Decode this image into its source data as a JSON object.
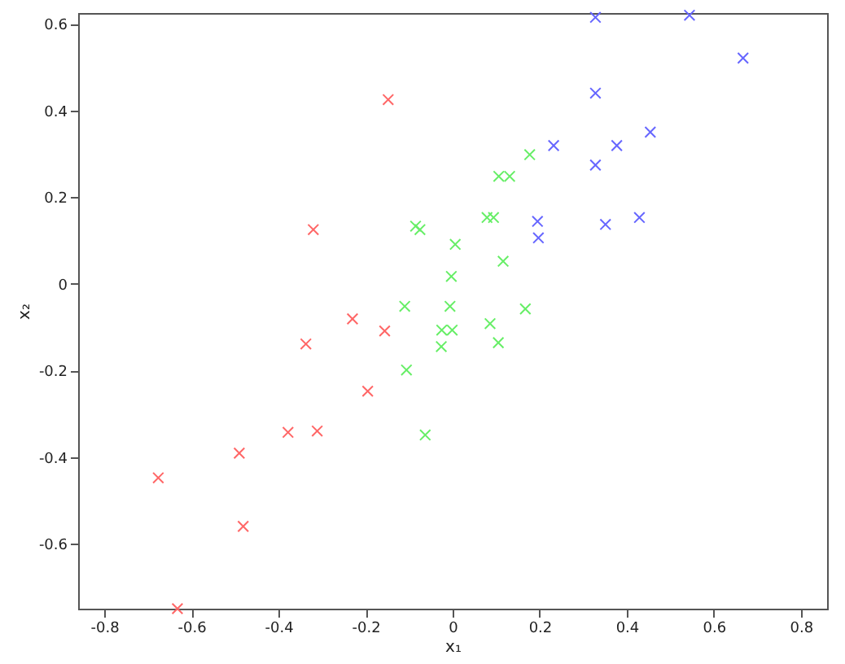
{
  "chart_data": {
    "type": "scatter",
    "xlabel": "x₁",
    "ylabel": "x₂",
    "xlim": [
      -0.86,
      0.86
    ],
    "ylim": [
      -0.75,
      0.625
    ],
    "xticks": [
      -0.8,
      -0.6,
      -0.4,
      -0.2,
      0,
      0.2,
      0.4,
      0.6,
      0.8
    ],
    "yticks": [
      -0.6,
      -0.4,
      -0.2,
      0,
      0.2,
      0.4,
      0.6
    ],
    "grid": false,
    "marker": "cross",
    "series": [
      {
        "color": "#ff6666",
        "x": [
          -0.148,
          -0.32,
          -0.23,
          -0.156,
          -0.337,
          -0.195,
          -0.378,
          -0.311,
          -0.49,
          -0.676,
          -0.481,
          -0.632
        ],
        "values": [
          0.425,
          0.125,
          -0.081,
          -0.109,
          -0.139,
          -0.248,
          -0.343,
          -0.34,
          -0.391,
          -0.448,
          -0.56,
          -0.75
        ]
      },
      {
        "color": "#66ee66",
        "x": [
          -0.085,
          -0.075,
          0.006,
          -0.003,
          -0.11,
          -0.006,
          0.177,
          0.106,
          0.131,
          0.079,
          0.094,
          0.116,
          0.167,
          0.086,
          -0.025,
          -0.001,
          -0.026,
          0.105,
          -0.106,
          -0.063
        ],
        "values": [
          0.133,
          0.125,
          0.091,
          0.017,
          -0.052,
          -0.052,
          0.298,
          0.248,
          0.248,
          0.153,
          0.153,
          0.052,
          -0.058,
          -0.092,
          -0.107,
          -0.107,
          -0.145,
          -0.136,
          -0.199,
          -0.349
        ]
      },
      {
        "color": "#6666ff",
        "x": [
          0.328,
          0.544,
          0.667,
          0.328,
          0.454,
          0.232,
          0.377,
          0.328,
          0.195,
          0.197,
          0.351,
          0.429
        ],
        "values": [
          0.615,
          0.62,
          0.521,
          0.44,
          0.35,
          0.319,
          0.319,
          0.274,
          0.144,
          0.106,
          0.137,
          0.153
        ]
      }
    ]
  }
}
